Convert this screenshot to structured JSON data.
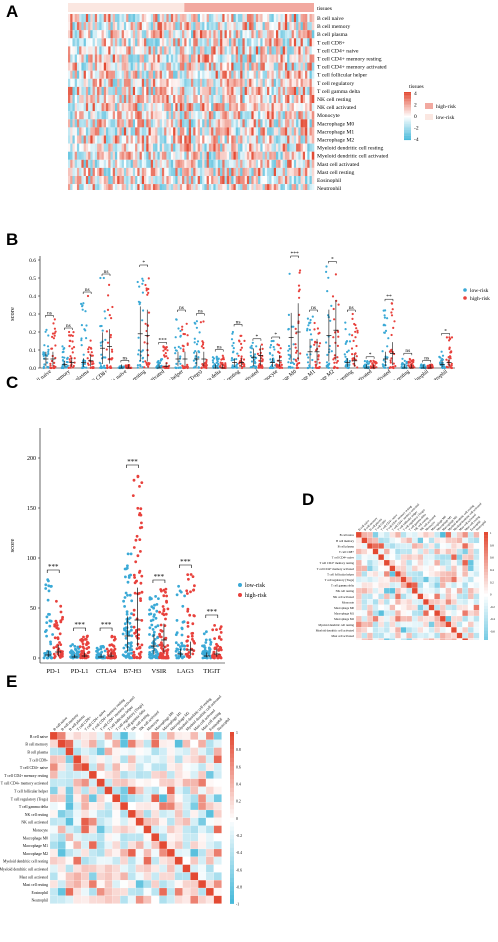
{
  "letters": {
    "a": "A",
    "b": "B",
    "c": "C",
    "d": "D",
    "e": "E"
  },
  "colors": {
    "high": "#e8413c",
    "low": "#3aa9d6",
    "heat_hi": "#e34a33",
    "heat_lo": "#3fb6d8",
    "annot_high": "#f2a9a0",
    "annot_low": "#fbe7e1"
  },
  "cell_types": [
    "B cell naive",
    "B cell memory",
    "B cell plasma",
    "T cell CD8+",
    "T cell CD4+ naive",
    "T cell CD4+ memory resting",
    "T cell CD4+ memory activated",
    "T cell follicular helper",
    "T cell regulatory (Tregs)",
    "T cell gamma delta",
    "NK cell resting",
    "NK cell activated",
    "Monocyte",
    "Macrophage M0",
    "Macrophage M1",
    "Macrophage M2",
    "Myeloid dendritic cell resting",
    "Myeloid dendritic cell activated",
    "Mast cell activated",
    "Mast cell resting",
    "Eosinophil",
    "Neutrophil"
  ],
  "heatmap_rows": [
    "B cell naive",
    "B cell memory",
    "B cell plasma",
    "T cell CD8+",
    "T cell CD4+ naive",
    "T cell CD4+ memory resting",
    "T cell CD4+ memory activated",
    "T cell follicular helper",
    "T cell regulatory",
    "T cell gamma delta",
    "NK cell resting",
    "NK cell activated",
    "Monocyte",
    "Macrophage M0",
    "Macrophage M1",
    "Macrophage M2",
    "Myeloid dendritic cell resting",
    "Myeloid dendritic cell activated",
    "Mast cell activated",
    "Mast cell resting",
    "Eosinophil",
    "Neutrophil"
  ],
  "legendA": {
    "tissues_title": "tissues",
    "scale": [
      "4",
      "2",
      "0",
      "-2",
      "-4"
    ],
    "high": "high-risk",
    "low": "low-risk"
  },
  "chart_data": [
    {
      "type": "heatmap",
      "panel": "A",
      "rows": [
        "B cell naive",
        "B cell memory",
        "B cell plasma",
        "T cell CD8+",
        "T cell CD4+ naive",
        "T cell CD4+ memory resting",
        "T cell CD4+ memory activated",
        "T cell follicular helper",
        "T cell regulatory",
        "T cell gamma delta",
        "NK cell resting",
        "NK cell activated",
        "Monocyte",
        "Macrophage M0",
        "Macrophage M1",
        "Macrophage M2",
        "Myeloid dendritic cell resting",
        "Myeloid dendritic cell activated",
        "Mast cell activated",
        "Mast cell resting",
        "Eosinophil",
        "Neutrophil"
      ],
      "column_groups": [
        "low-risk",
        "high-risk"
      ],
      "color_range": [
        -4,
        4
      ]
    },
    {
      "type": "scatter",
      "panel": "B",
      "ylabel": "score",
      "ylim": [
        0,
        0.6
      ],
      "yticks": [
        "0.0",
        "0.1",
        "0.2",
        "0.3",
        "0.4",
        "0.5",
        "0.6"
      ],
      "legend": [
        "low-risk",
        "high-risk"
      ],
      "categories": [
        "B cell naive",
        "B cell memory",
        "B cell plasma",
        "T cell CD8+",
        "T cell CD4+ naive",
        "T cell CD4+ memory resting",
        "T cell CD4+ memory activated",
        "T cell follicular helper",
        "T cell regulatory (Tregs)",
        "T cell gamma delta",
        "NK cell resting",
        "NK cell activated",
        "Monocyte",
        "Macrophage M0",
        "Macrophage M1",
        "Macrophage M2",
        "Myeloid dendritic cell resting",
        "Myeloid dendritic cell activated",
        "Mast cell activated",
        "Mast cell resting",
        "Eosinophil",
        "Neutrophil"
      ],
      "significance": [
        "ns",
        "ns",
        "ns",
        "ns",
        "ns",
        "*",
        "***",
        "ns",
        "ns",
        "ns",
        "ns",
        "*",
        "*",
        "***",
        "ns",
        "*",
        "ns",
        "*",
        "**",
        "ns",
        "ns",
        "*"
      ],
      "series": [
        {
          "name": "low-risk",
          "medians": [
            0.05,
            0.02,
            0.03,
            0.11,
            0.0,
            0.19,
            0.0,
            0.05,
            0.05,
            0.0,
            0.03,
            0.06,
            0.03,
            0.17,
            0.09,
            0.18,
            0.03,
            0.0,
            0.05,
            0.0,
            0.0,
            0.02
          ],
          "maxes": [
            0.22,
            0.12,
            0.36,
            0.5,
            0.01,
            0.55,
            0.05,
            0.3,
            0.26,
            0.07,
            0.2,
            0.14,
            0.15,
            0.6,
            0.3,
            0.57,
            0.3,
            0.04,
            0.32,
            0.06,
            0.02,
            0.1
          ]
        },
        {
          "name": "high-risk",
          "medians": [
            0.05,
            0.03,
            0.04,
            0.12,
            0.0,
            0.18,
            0.01,
            0.05,
            0.05,
            0.0,
            0.03,
            0.07,
            0.04,
            0.2,
            0.09,
            0.21,
            0.04,
            0.0,
            0.08,
            0.0,
            0.0,
            0.03
          ],
          "maxes": [
            0.27,
            0.2,
            0.4,
            0.49,
            0.02,
            0.5,
            0.12,
            0.26,
            0.28,
            0.08,
            0.22,
            0.13,
            0.15,
            0.58,
            0.3,
            0.52,
            0.3,
            0.04,
            0.36,
            0.05,
            0.02,
            0.17
          ]
        }
      ]
    },
    {
      "type": "scatter",
      "panel": "C",
      "ylabel": "score",
      "ylim": [
        -5,
        230
      ],
      "yticks": [
        "0",
        "50",
        "100",
        "150",
        "200"
      ],
      "legend": [
        "low-risk",
        "high-risk"
      ],
      "categories": [
        "PD-1",
        "PD-L1",
        "CTLA4",
        "B7-H3",
        "VSIR",
        "LAG3",
        "TIGIT"
      ],
      "significance": [
        "***",
        "***",
        "***",
        "***",
        "***",
        "***",
        "***"
      ],
      "series": [
        {
          "name": "low-risk",
          "medians": [
            3,
            1,
            1,
            22,
            12,
            4,
            2
          ],
          "maxes": [
            80,
            14,
            12,
            108,
            62,
            75,
            28
          ]
        },
        {
          "name": "high-risk",
          "medians": [
            6,
            2,
            2,
            38,
            18,
            8,
            4
          ],
          "maxes": [
            58,
            22,
            22,
            185,
            70,
            85,
            35
          ]
        }
      ]
    },
    {
      "type": "heatmap",
      "panel": "D",
      "rows": "cell_types",
      "columns": "cell_types",
      "color_range": [
        -1,
        1
      ],
      "scale": [
        "1",
        "0.8",
        "0.6",
        "0.4",
        "0.2",
        "0",
        "-0.2",
        "-0.4",
        "-0.6",
        "-0.8",
        "-1"
      ]
    },
    {
      "type": "heatmap",
      "panel": "E",
      "rows": "cell_types",
      "columns": "cell_types",
      "color_range": [
        -1,
        1
      ],
      "scale": [
        "1",
        "0.8",
        "0.6",
        "0.4",
        "0.2",
        "0",
        "-0.2",
        "-0.4",
        "-0.6",
        "-0.8",
        "-1"
      ]
    }
  ]
}
